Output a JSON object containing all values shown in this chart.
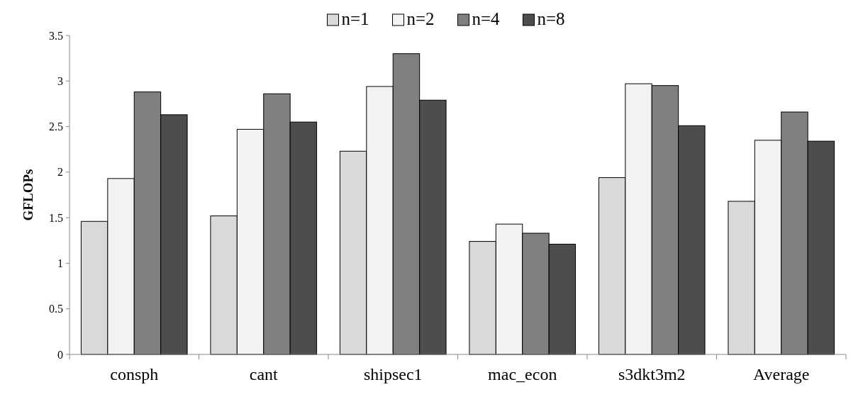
{
  "chart_data": {
    "type": "bar",
    "ylabel": "GFLOPs",
    "categories": [
      "consph",
      "cant",
      "shipsec1",
      "mac_econ",
      "s3dkt3m2",
      "Average"
    ],
    "series": [
      {
        "name": "n=1",
        "color": "#d9d9d9",
        "values": [
          1.46,
          1.52,
          2.23,
          1.24,
          1.94,
          1.68
        ]
      },
      {
        "name": "n=2",
        "color": "#f2f2f2",
        "values": [
          1.93,
          2.47,
          2.94,
          1.43,
          2.97,
          2.35
        ]
      },
      {
        "name": "n=4",
        "color": "#808080",
        "values": [
          2.88,
          2.86,
          3.3,
          1.33,
          2.95,
          2.66
        ]
      },
      {
        "name": "n=8",
        "color": "#4d4d4d",
        "values": [
          2.63,
          2.55,
          2.79,
          1.21,
          2.51,
          2.34
        ]
      }
    ],
    "ylim": [
      0,
      3.5
    ],
    "yticks": [
      0,
      0.5,
      1,
      1.5,
      2,
      2.5,
      3,
      3.5
    ],
    "legend": "top",
    "grid": false
  }
}
